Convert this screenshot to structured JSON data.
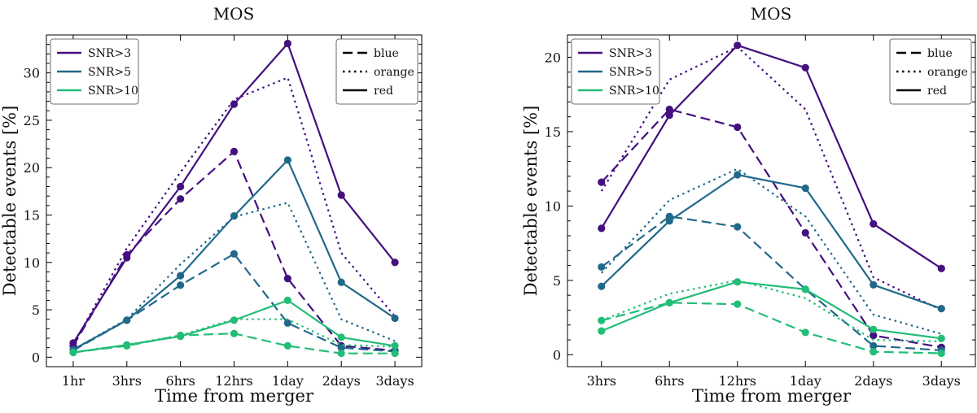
{
  "chart_data": [
    {
      "type": "line",
      "title": "MOS",
      "xlabel": "Time from merger",
      "ylabel": "Detectable events [%]",
      "categories": [
        "1hr",
        "3hrs",
        "6hrs",
        "12hrs",
        "1day",
        "2days",
        "3days"
      ],
      "ylim": [
        -1,
        34
      ],
      "yticks": [
        0,
        5,
        10,
        15,
        20,
        25,
        30
      ],
      "ytick_labels": [
        "0",
        "5",
        "10",
        "15",
        "20",
        "25",
        "30"
      ],
      "series": [
        {
          "name": "SNR>3",
          "color": "#440f7f",
          "style": "red",
          "values": [
            1.5,
            10.5,
            18.0,
            26.7,
            33.1,
            17.1,
            10.0
          ]
        },
        {
          "name": "SNR>3",
          "color": "#440f7f",
          "style": "orange",
          "values": [
            1.3,
            11.5,
            19.5,
            27.2,
            29.5,
            11.0,
            4.3
          ]
        },
        {
          "name": "SNR>3",
          "color": "#440f7f",
          "style": "blue",
          "values": [
            1.2,
            10.8,
            16.7,
            21.7,
            8.3,
            1.2,
            0.7
          ]
        },
        {
          "name": "SNR>5",
          "color": "#21698a",
          "style": "red",
          "values": [
            0.8,
            3.9,
            8.6,
            14.9,
            20.8,
            7.9,
            4.1
          ]
        },
        {
          "name": "SNR>5",
          "color": "#21698a",
          "style": "orange",
          "values": [
            0.8,
            4.0,
            9.8,
            14.8,
            16.3,
            4.0,
            1.7
          ]
        },
        {
          "name": "SNR>5",
          "color": "#21698a",
          "style": "blue",
          "values": [
            0.7,
            3.9,
            7.6,
            10.9,
            3.6,
            1.0,
            0.6
          ]
        },
        {
          "name": "SNR>10",
          "color": "#22bd77",
          "style": "red",
          "values": [
            0.5,
            1.3,
            2.2,
            3.9,
            6.0,
            2.1,
            1.2
          ]
        },
        {
          "name": "SNR>10",
          "color": "#22bd77",
          "style": "orange",
          "values": [
            0.5,
            1.3,
            2.3,
            4.0,
            4.0,
            1.3,
            1.1
          ]
        },
        {
          "name": "SNR>10",
          "color": "#22bd77",
          "style": "blue",
          "values": [
            0.5,
            1.2,
            2.3,
            2.5,
            1.2,
            0.4,
            0.4
          ]
        }
      ],
      "legend_snr": [
        {
          "label": "SNR>3",
          "color": "#440f7f"
        },
        {
          "label": "SNR>5",
          "color": "#21698a"
        },
        {
          "label": "SNR>10",
          "color": "#22bd77"
        }
      ],
      "legend_styles": [
        {
          "label": "blue",
          "dash": "dashed"
        },
        {
          "label": "orange",
          "dash": "dotted"
        },
        {
          "label": "red",
          "dash": "solid"
        }
      ],
      "legend_position": [
        "top-left",
        "top-right"
      ]
    },
    {
      "type": "line",
      "title": "MOS",
      "xlabel": "Time from merger",
      "ylabel": "Detectable events [%]",
      "categories": [
        "3hrs",
        "6hrs",
        "12hrs",
        "1day",
        "2days",
        "3days"
      ],
      "ylim": [
        -0.8,
        21.5
      ],
      "yticks": [
        0,
        5,
        10,
        15,
        20
      ],
      "ytick_labels": [
        "0",
        "5",
        "10",
        "15",
        "20"
      ],
      "series": [
        {
          "name": "SNR>3",
          "color": "#440f7f",
          "style": "red",
          "values": [
            8.5,
            16.1,
            20.8,
            19.3,
            8.8,
            5.8
          ]
        },
        {
          "name": "SNR>3",
          "color": "#440f7f",
          "style": "orange",
          "values": [
            11.0,
            18.5,
            20.7,
            16.5,
            5.2,
            3.0
          ]
        },
        {
          "name": "SNR>3",
          "color": "#440f7f",
          "style": "blue",
          "values": [
            11.6,
            16.5,
            15.3,
            8.2,
            1.3,
            0.5
          ]
        },
        {
          "name": "SNR>5",
          "color": "#21698a",
          "style": "red",
          "values": [
            4.6,
            9.0,
            12.1,
            11.2,
            4.7,
            3.1
          ]
        },
        {
          "name": "SNR>5",
          "color": "#21698a",
          "style": "orange",
          "values": [
            5.5,
            10.4,
            12.5,
            9.3,
            2.7,
            1.4
          ]
        },
        {
          "name": "SNR>5",
          "color": "#21698a",
          "style": "blue",
          "values": [
            5.9,
            9.3,
            8.6,
            4.4,
            0.6,
            0.3
          ]
        },
        {
          "name": "SNR>10",
          "color": "#22bd77",
          "style": "red",
          "values": [
            1.6,
            3.5,
            4.9,
            4.4,
            1.7,
            1.1
          ]
        },
        {
          "name": "SNR>10",
          "color": "#22bd77",
          "style": "orange",
          "values": [
            2.3,
            4.1,
            5.0,
            3.8,
            1.0,
            0.9
          ]
        },
        {
          "name": "SNR>10",
          "color": "#22bd77",
          "style": "blue",
          "values": [
            2.3,
            3.5,
            3.4,
            1.5,
            0.2,
            0.1
          ]
        }
      ],
      "legend_snr": [
        {
          "label": "SNR>3",
          "color": "#440f7f"
        },
        {
          "label": "SNR>5",
          "color": "#21698a"
        },
        {
          "label": "SNR>10",
          "color": "#22bd77"
        }
      ],
      "legend_styles": [
        {
          "label": "blue",
          "dash": "dashed"
        },
        {
          "label": "orange",
          "dash": "dotted"
        },
        {
          "label": "red",
          "dash": "solid"
        }
      ],
      "legend_position": [
        "top-left",
        "top-right"
      ]
    }
  ]
}
